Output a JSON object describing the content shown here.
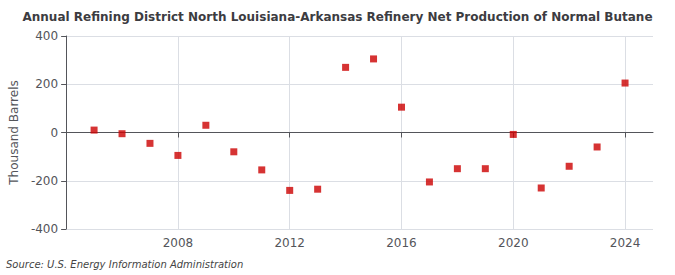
{
  "chart_data": {
    "type": "scatter",
    "title": "Annual Refining District North Louisiana-Arkansas Refinery Net Production of Normal Butane",
    "ylabel": "Thousand Barrels",
    "source": "Source: U.S. Energy Information Administration",
    "x": [
      2005,
      2006,
      2007,
      2008,
      2009,
      2010,
      2011,
      2012,
      2013,
      2014,
      2015,
      2016,
      2017,
      2018,
      2019,
      2020,
      2021,
      2022,
      2023,
      2024
    ],
    "values": [
      10,
      -5,
      -45,
      -95,
      30,
      -80,
      -155,
      -240,
      -235,
      270,
      305,
      105,
      -205,
      -150,
      -150,
      -8,
      -230,
      -140,
      -60,
      205
    ],
    "color": "#cc0000",
    "marker": "square",
    "xlim": [
      2004,
      2025
    ],
    "xticks": [
      2008,
      2012,
      2016,
      2020,
      2024
    ],
    "ylim": [
      -400,
      400
    ],
    "yticks": [
      -400,
      -200,
      0,
      200,
      400
    ],
    "grid": true
  }
}
